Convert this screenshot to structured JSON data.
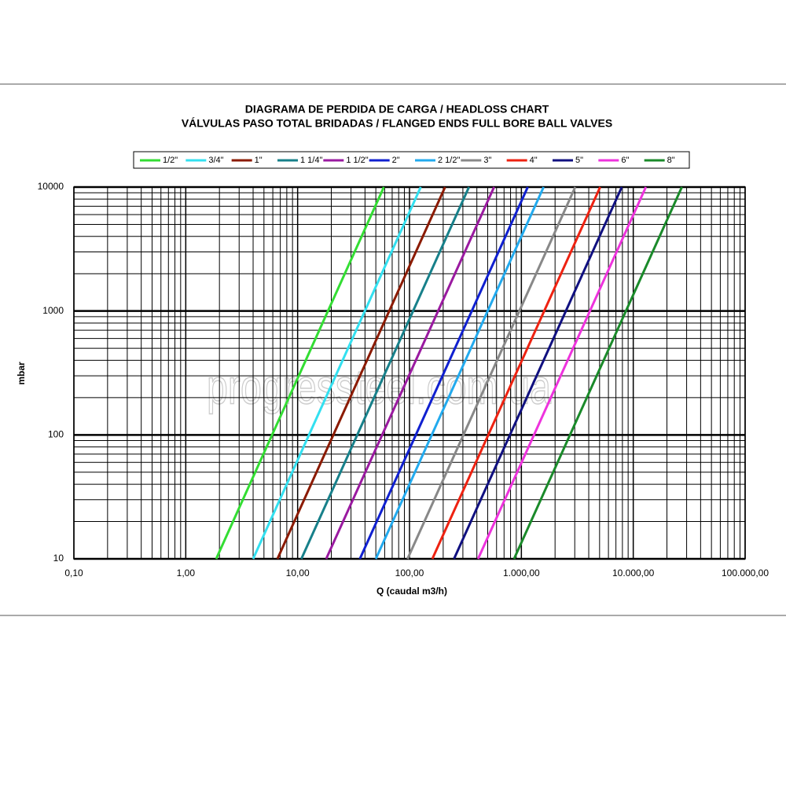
{
  "chart_data": {
    "type": "line",
    "title": "DIAGRAMA DE PERDIDA DE CARGA / HEADLOSS CHART",
    "subtitle": "VÁLVULAS PASO TOTAL BRIDADAS / FLANGED ENDS FULL BORE BALL VALVES",
    "x_label": "Q (caudal m3/h)",
    "y_label": "mbar",
    "watermark": "progressteel.com.ua",
    "log_x": true,
    "log_y": true,
    "grid": true,
    "minor_grid": true,
    "legend": "top",
    "xlim": [
      0.1,
      100000
    ],
    "ylim": [
      10,
      10000
    ],
    "xticks": [
      {
        "value": 0.1,
        "label": "0,10"
      },
      {
        "value": 1,
        "label": "1,00"
      },
      {
        "value": 10,
        "label": "10,00"
      },
      {
        "value": 100,
        "label": "100,00"
      },
      {
        "value": 1000,
        "label": "1.000,00"
      },
      {
        "value": 10000,
        "label": "10.000,00"
      },
      {
        "value": 100000,
        "label": "100.000,00"
      }
    ],
    "yticks": [
      10,
      100,
      1000,
      10000
    ],
    "series": [
      {
        "name": "1/2\"",
        "color": "#33dd33",
        "x": [
          1.87,
          59
        ],
        "values": [
          10,
          10000
        ]
      },
      {
        "name": "3/4\"",
        "color": "#33e0f0",
        "x": [
          4,
          126
        ],
        "values": [
          10,
          10000
        ]
      },
      {
        "name": "1\"",
        "color": "#8b1a00",
        "x": [
          6.6,
          208
        ],
        "values": [
          10,
          10000
        ]
      },
      {
        "name": "1 1/4\"",
        "color": "#17808a",
        "x": [
          10.8,
          340
        ],
        "values": [
          10,
          10000
        ]
      },
      {
        "name": "1 1/2\"",
        "color": "#9a1aa0",
        "x": [
          18,
          570
        ],
        "values": [
          10,
          10000
        ]
      },
      {
        "name": "2\"",
        "color": "#1020d0",
        "x": [
          36,
          1140
        ],
        "values": [
          10,
          10000
        ]
      },
      {
        "name": "2 1/2\"",
        "color": "#22aaee",
        "x": [
          50,
          1580
        ],
        "values": [
          10,
          10000
        ]
      },
      {
        "name": "3\"",
        "color": "#888888",
        "x": [
          96,
          3030
        ],
        "values": [
          10,
          10000
        ]
      },
      {
        "name": "4\"",
        "color": "#ee2211",
        "x": [
          160,
          5060
        ],
        "values": [
          10,
          10000
        ]
      },
      {
        "name": "5\"",
        "color": "#101080",
        "x": [
          250,
          7900
        ],
        "values": [
          10,
          10000
        ]
      },
      {
        "name": "6\"",
        "color": "#ee33dd",
        "x": [
          410,
          12960
        ],
        "values": [
          10,
          10000
        ]
      },
      {
        "name": "8\"",
        "color": "#1a8a2a",
        "x": [
          860,
          27200
        ],
        "values": [
          10,
          10000
        ]
      }
    ]
  }
}
